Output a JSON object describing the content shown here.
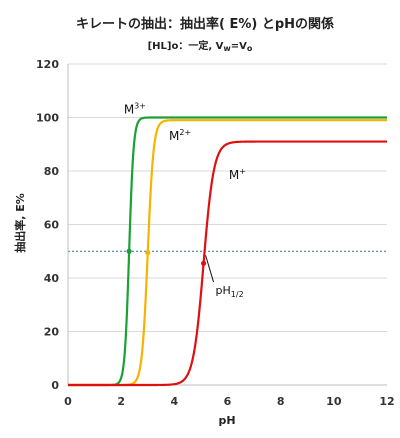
{
  "chart_data": {
    "type": "line",
    "title": "キレートの抽出：抽出率( E%) とpHの関係",
    "subtitle": {
      "prefix": "[HL]o：一定, V",
      "sub1": "w",
      "mid": "=V",
      "sub2": "o"
    },
    "xlabel": "pH",
    "ylabel": "抽出率, E%",
    "xlim": [
      0,
      12
    ],
    "ylim": [
      0,
      120
    ],
    "xticks": [
      "0",
      "2",
      "4",
      "6",
      "8",
      "10",
      "12"
    ],
    "yticks": [
      "0",
      "20",
      "40",
      "60",
      "80",
      "100",
      "120"
    ],
    "grid": "horizontal",
    "reference_line": {
      "y": 50,
      "style": "dotted",
      "color": "#2e75b6"
    },
    "series": [
      {
        "name": "M",
        "charge": "3+",
        "color": "#1aa134",
        "max": 100,
        "ph_half": 2.3,
        "slope": 5.2,
        "label_at": {
          "x": 2.1,
          "y": 101.5
        }
      },
      {
        "name": "M",
        "charge": "2+",
        "color": "#f5b400",
        "max": 99,
        "ph_half": 3.0,
        "slope": 4.0,
        "label_at": {
          "x": 3.8,
          "y": 91.5
        }
      },
      {
        "name": "M",
        "charge": "+",
        "color": "#e01010",
        "max": 91,
        "ph_half": 5.1,
        "slope": 2.25,
        "label_at": {
          "x": 6.05,
          "y": 77
        }
      }
    ],
    "annotation": {
      "base": "pH",
      "sub": "1/2",
      "x": 5.1,
      "y": 50,
      "text_at": {
        "x": 5.55,
        "y": 34
      }
    }
  }
}
